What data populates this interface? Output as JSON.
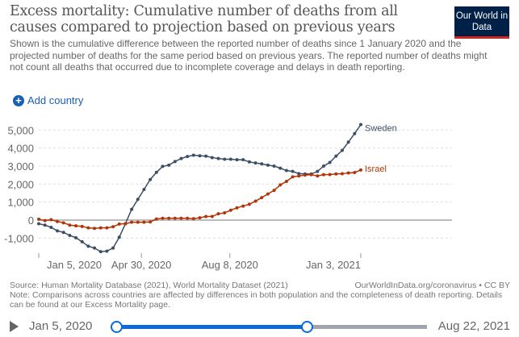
{
  "header": {
    "title": "Excess mortality: Cumulative number of deaths from all causes compared to projection based on previous years",
    "subtitle": "Shown is the cumulative difference between the reported number of deaths since 1 January 2020 and the projected number of deaths for the same period based on previous years. The reported number of deaths might not count all deaths that occurred due to incomplete coverage and delays in death reporting.",
    "logo": "Our World in Data",
    "add_country": "Add country"
  },
  "chart_data": {
    "type": "line",
    "title": "",
    "xlabel": "",
    "ylabel": "",
    "ylim": [
      -1700,
      5300
    ],
    "yticks": [
      -1000,
      0,
      1000,
      2000,
      3000,
      4000,
      5000
    ],
    "ytick_labels": [
      "-1,000",
      "0",
      "1,000",
      "2,000",
      "3,000",
      "4,000",
      "5,000"
    ],
    "xticks": [
      {
        "date": "2020-01-05",
        "label": "Jan 5, 2020"
      },
      {
        "date": "2020-04-30",
        "label": "Apr 30, 2020"
      },
      {
        "date": "2020-08-08",
        "label": "Aug 8, 2020"
      },
      {
        "date": "2021-01-03",
        "label": "Jan 3, 2021"
      }
    ],
    "x_start": "2020-01-05",
    "x_end": "2021-01-03",
    "frequency": "weekly",
    "grid": true,
    "series": [
      {
        "name": "Sweden",
        "color": "#3c4e66",
        "values": [
          -200,
          -280,
          -400,
          -600,
          -680,
          -850,
          -980,
          -1200,
          -1450,
          -1550,
          -1750,
          -1720,
          -1550,
          -950,
          -200,
          600,
          1150,
          1700,
          2250,
          2650,
          2980,
          3050,
          3250,
          3420,
          3530,
          3600,
          3570,
          3550,
          3470,
          3420,
          3380,
          3380,
          3350,
          3350,
          3230,
          3170,
          3120,
          3050,
          3000,
          2880,
          2750,
          2700,
          2580,
          2560,
          2560,
          2700,
          3000,
          3200,
          3550,
          3870,
          4330,
          4800,
          5300
        ]
      },
      {
        "name": "Israel",
        "color": "#b13507",
        "values": [
          50,
          -30,
          20,
          -80,
          -150,
          -280,
          -320,
          -350,
          -430,
          -460,
          -430,
          -430,
          -370,
          -220,
          -200,
          -120,
          -120,
          -120,
          -100,
          60,
          100,
          100,
          100,
          100,
          100,
          80,
          130,
          200,
          200,
          350,
          400,
          550,
          680,
          780,
          880,
          1050,
          1250,
          1450,
          1650,
          1950,
          2150,
          2400,
          2450,
          2500,
          2520,
          2450,
          2520,
          2530,
          2560,
          2570,
          2620,
          2640,
          2780
        ]
      }
    ]
  },
  "footer": {
    "source": "Source: Human Mortality Database (2021), World Mortality Dataset (2021)",
    "url": "OurWorldInData.org/coronavirus • CC BY",
    "note": "Note: Comparisons across countries are affected by differences in both population and the completeness of death reporting. Details can be found at our Excess Mortality page."
  },
  "timeline": {
    "start": "Jan 5, 2020",
    "end": "Aug 22, 2021",
    "selected_end": "Jan 3, 2021"
  }
}
